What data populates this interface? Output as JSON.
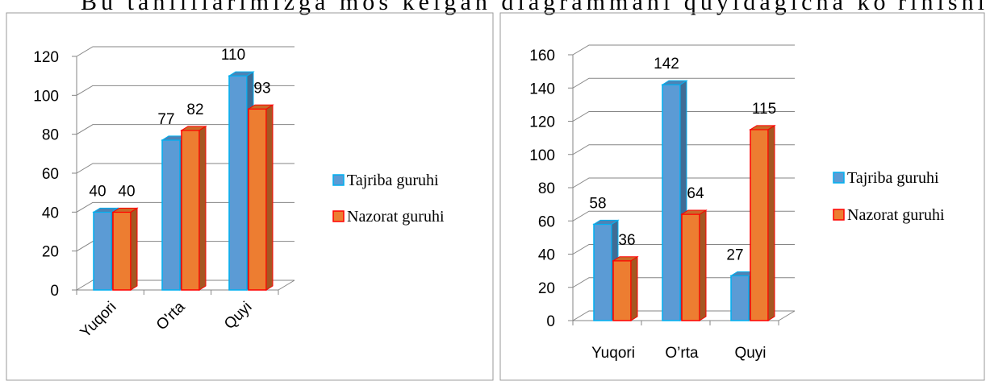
{
  "heading": "Bu tahlillarimizga mos kelgan diagrammani quyidagicha ko'rinishi",
  "chart_data": [
    {
      "type": "bar3d",
      "categories": [
        "Yuqori",
        "O'rta",
        "Quyi"
      ],
      "series": [
        {
          "name": "Tajriba guruhi",
          "color": "#5b9bd5",
          "values": [
            40,
            77,
            110
          ]
        },
        {
          "name": "Nazorat guruhi",
          "color": "#ed7d31",
          "values": [
            40,
            82,
            93
          ]
        }
      ],
      "ylim": [
        0,
        120
      ],
      "yticks": [
        0,
        20,
        40,
        60,
        80,
        100,
        120
      ],
      "grid": true,
      "legend": "right"
    },
    {
      "type": "bar3d",
      "categories": [
        "Yuqori",
        "O’rta",
        "Quyi"
      ],
      "series": [
        {
          "name": "Tajriba guruhi",
          "color": "#5b9bd5",
          "values": [
            58,
            142,
            27
          ]
        },
        {
          "name": "Nazorat guruhi",
          "color": "#ed7d31",
          "values": [
            36,
            64,
            115
          ]
        }
      ],
      "ylim": [
        0,
        160
      ],
      "yticks": [
        0,
        20,
        40,
        60,
        80,
        100,
        120,
        140,
        160
      ],
      "grid": true,
      "legend": "right"
    }
  ]
}
